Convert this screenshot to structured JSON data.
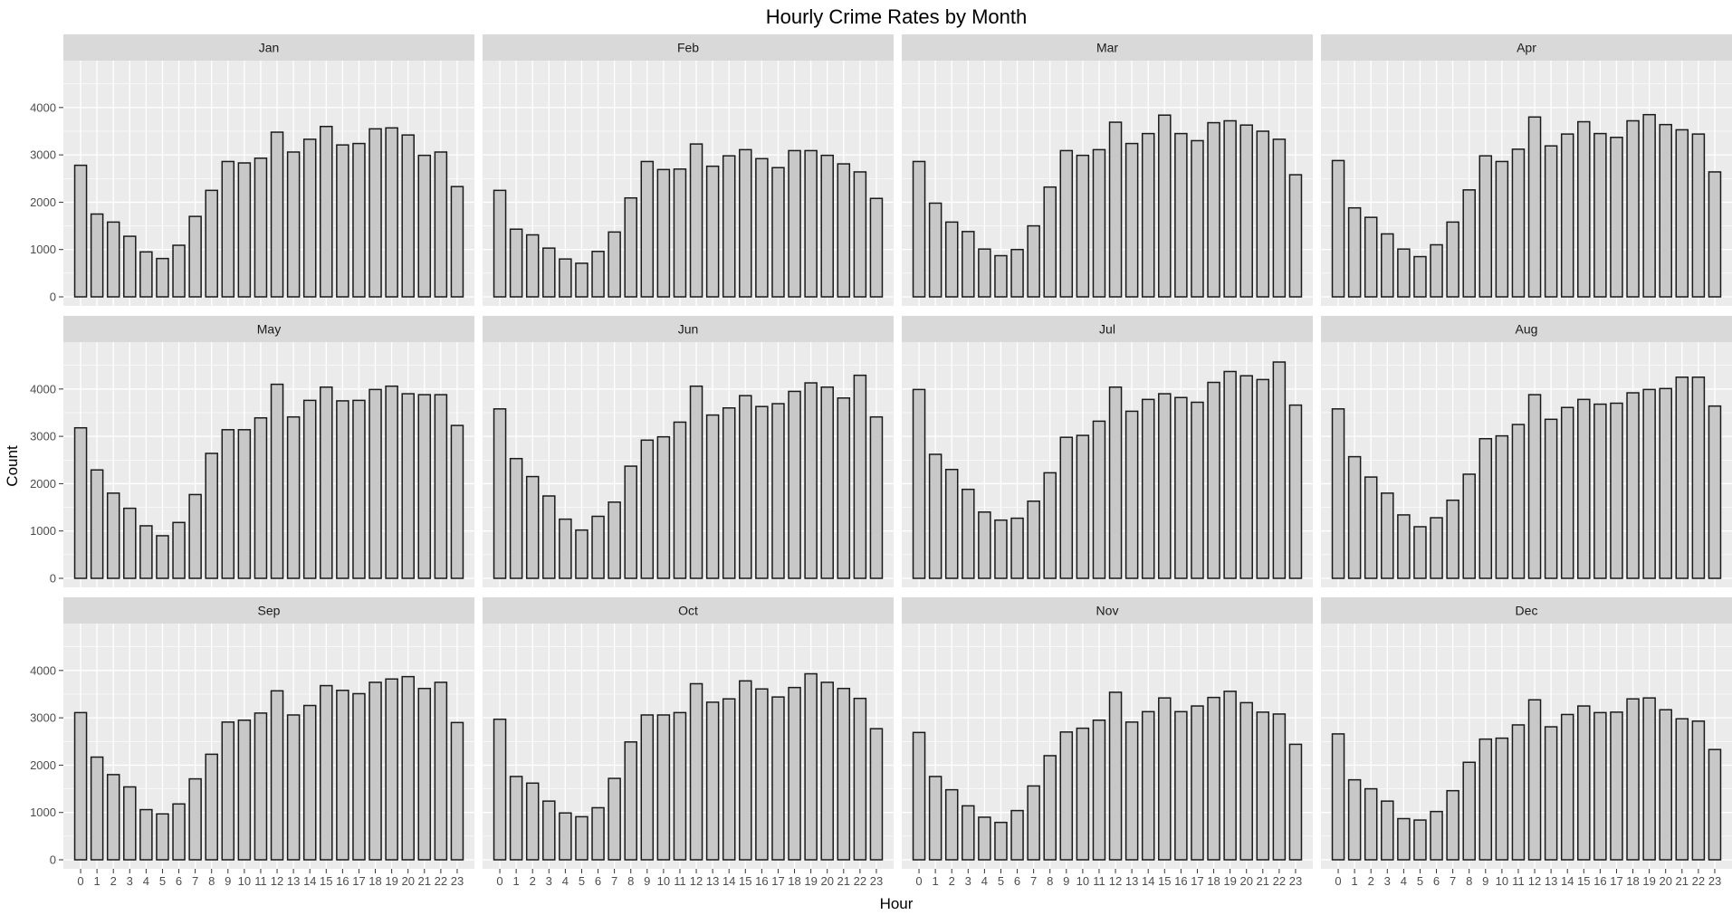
{
  "chart_data": {
    "type": "bar",
    "title": "Hourly Crime Rates by Month",
    "xlabel": "Hour",
    "ylabel": "Count",
    "ylim": [
      0,
      4800
    ],
    "yticks": [
      0,
      1000,
      2000,
      3000,
      4000
    ],
    "grid": true,
    "layout": "facet_wrap 3 rows x 4 columns",
    "colors": {
      "bar_fill": "#c8c8c8",
      "bar_stroke": "#1a1a1a",
      "panel_bg": "#ebebeb",
      "strip_bg": "#d9d9d9",
      "grid": "#ffffff"
    },
    "categories": [
      "0",
      "1",
      "2",
      "3",
      "4",
      "5",
      "6",
      "7",
      "8",
      "9",
      "10",
      "11",
      "12",
      "13",
      "14",
      "15",
      "16",
      "17",
      "18",
      "19",
      "20",
      "21",
      "22",
      "23"
    ],
    "facets": [
      {
        "name": "Jan",
        "values": [
          2780,
          1750,
          1580,
          1280,
          950,
          810,
          1090,
          1700,
          2250,
          2860,
          2830,
          2930,
          3480,
          3060,
          3330,
          3600,
          3210,
          3240,
          3550,
          3570,
          3420,
          2990,
          3060,
          2330
        ]
      },
      {
        "name": "Feb",
        "values": [
          2250,
          1430,
          1310,
          1030,
          800,
          710,
          960,
          1370,
          2090,
          2860,
          2690,
          2700,
          3230,
          2760,
          2980,
          3110,
          2920,
          2730,
          3090,
          3090,
          2990,
          2810,
          2640,
          2080
        ]
      },
      {
        "name": "Mar",
        "values": [
          2860,
          1980,
          1580,
          1380,
          1010,
          870,
          1000,
          1500,
          2320,
          3090,
          2990,
          3110,
          3690,
          3240,
          3450,
          3840,
          3450,
          3300,
          3680,
          3720,
          3630,
          3500,
          3330,
          2580
        ]
      },
      {
        "name": "Apr",
        "values": [
          2880,
          1880,
          1680,
          1330,
          1010,
          850,
          1100,
          1580,
          2260,
          2980,
          2860,
          3120,
          3800,
          3190,
          3440,
          3700,
          3450,
          3370,
          3720,
          3850,
          3640,
          3530,
          3440,
          2640
        ]
      },
      {
        "name": "May",
        "values": [
          3180,
          2290,
          1800,
          1480,
          1110,
          900,
          1180,
          1770,
          2640,
          3140,
          3140,
          3390,
          4100,
          3410,
          3760,
          4040,
          3750,
          3760,
          3990,
          4060,
          3900,
          3880,
          3880,
          3230
        ]
      },
      {
        "name": "Jun",
        "values": [
          3580,
          2530,
          2150,
          1740,
          1250,
          1020,
          1310,
          1610,
          2370,
          2920,
          2990,
          3300,
          4060,
          3450,
          3600,
          3860,
          3630,
          3690,
          3950,
          4130,
          4040,
          3810,
          4290,
          3410
        ]
      },
      {
        "name": "Jul",
        "values": [
          3990,
          2620,
          2300,
          1880,
          1400,
          1230,
          1270,
          1630,
          2230,
          2980,
          3020,
          3320,
          4040,
          3530,
          3780,
          3900,
          3820,
          3720,
          4140,
          4370,
          4280,
          4200,
          4570,
          3660
        ]
      },
      {
        "name": "Aug",
        "values": [
          3580,
          2570,
          2140,
          1800,
          1340,
          1090,
          1280,
          1650,
          2200,
          2950,
          3010,
          3250,
          3880,
          3360,
          3610,
          3780,
          3680,
          3700,
          3920,
          3990,
          4010,
          4250,
          4250,
          3640
        ]
      },
      {
        "name": "Sep",
        "values": [
          3110,
          2170,
          1800,
          1540,
          1060,
          970,
          1180,
          1710,
          2230,
          2910,
          2950,
          3100,
          3570,
          3060,
          3260,
          3680,
          3580,
          3510,
          3750,
          3820,
          3870,
          3620,
          3750,
          2900
        ]
      },
      {
        "name": "Oct",
        "values": [
          2970,
          1760,
          1620,
          1240,
          990,
          910,
          1100,
          1720,
          2490,
          3060,
          3060,
          3110,
          3720,
          3330,
          3400,
          3780,
          3610,
          3440,
          3640,
          3930,
          3750,
          3620,
          3410,
          2770
        ]
      },
      {
        "name": "Nov",
        "values": [
          2690,
          1760,
          1480,
          1140,
          900,
          790,
          1040,
          1560,
          2200,
          2700,
          2780,
          2950,
          3540,
          2910,
          3130,
          3420,
          3130,
          3250,
          3430,
          3560,
          3320,
          3120,
          3080,
          2440
        ]
      },
      {
        "name": "Dec",
        "values": [
          2660,
          1690,
          1500,
          1240,
          870,
          840,
          1020,
          1460,
          2060,
          2550,
          2570,
          2850,
          3380,
          2810,
          3070,
          3250,
          3110,
          3120,
          3400,
          3420,
          3170,
          2980,
          2930,
          2330
        ]
      }
    ]
  }
}
